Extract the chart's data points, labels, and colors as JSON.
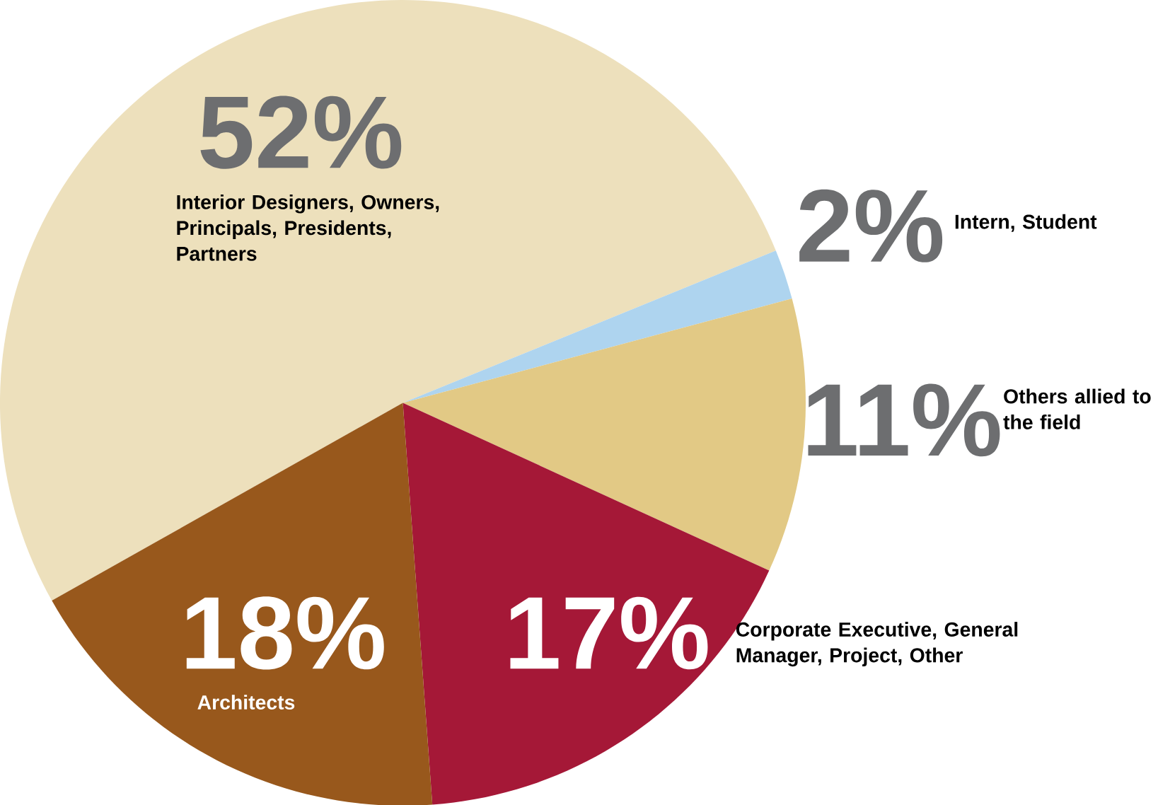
{
  "chart_data": {
    "type": "pie",
    "categories": [
      "Interior Designers, Owners, Principals, Presidents, Partners",
      "Intern, Student",
      "Others allied to the field",
      "Corporate Executive, General Manager, Project, Other",
      "Architects"
    ],
    "values": [
      52,
      2,
      11,
      17,
      18
    ],
    "value_labels": [
      "52%",
      "2%",
      "11%",
      "17%",
      "18%"
    ],
    "colors": [
      "#ede0bc",
      "#aed4ef",
      "#e2c985",
      "#a51837",
      "#98581c"
    ]
  }
}
